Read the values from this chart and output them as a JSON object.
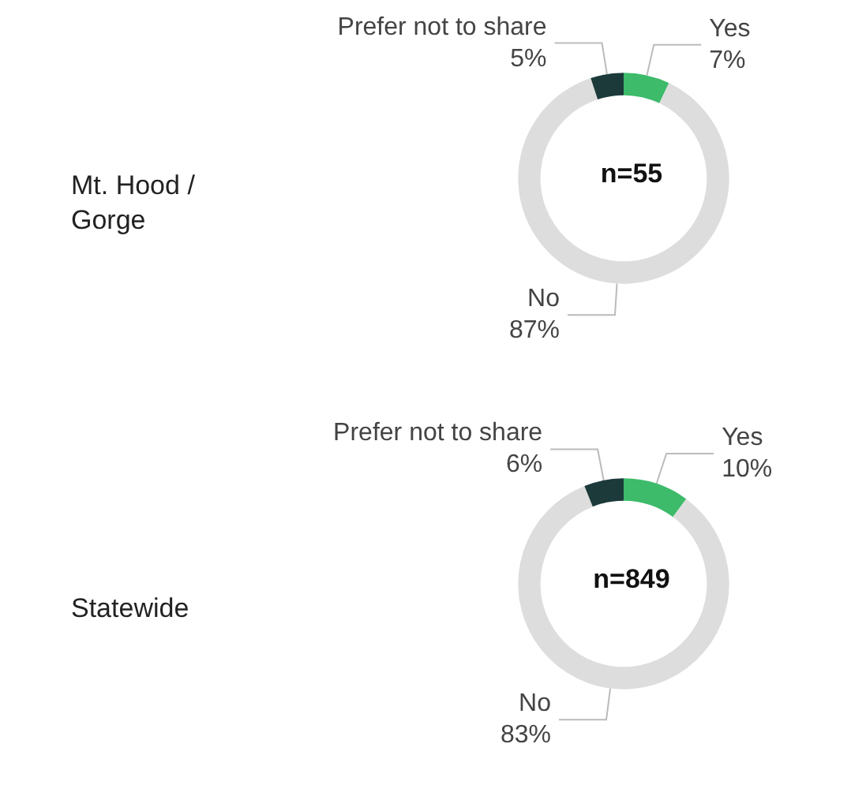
{
  "chart_data": [
    {
      "type": "donut",
      "title": "Mt. Hood /\nGorge",
      "annotations": [
        "n=55"
      ],
      "categories": [
        "Yes",
        "No",
        "Prefer not to share"
      ],
      "values": [
        7,
        87,
        5
      ],
      "value_labels": [
        "7%",
        "87%",
        "5%"
      ],
      "colors": [
        "#3dbb6a",
        "#dcdddc",
        "#1c3a3a"
      ],
      "legend": false
    },
    {
      "type": "donut",
      "title": "Statewide",
      "annotations": [
        "n=849"
      ],
      "categories": [
        "Yes",
        "No",
        "Prefer not to share"
      ],
      "values": [
        10,
        83,
        6
      ],
      "value_labels": [
        "10%",
        "83%",
        "6%"
      ],
      "colors": [
        "#3dbb6a",
        "#dcdddc",
        "#1c3a3a"
      ],
      "legend": false
    }
  ]
}
